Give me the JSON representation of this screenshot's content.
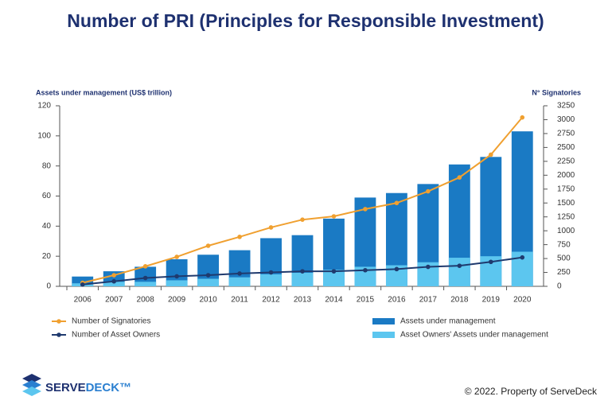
{
  "title": "Number of PRI (Principles for Responsible Investment)",
  "footer": {
    "logo": [
      "SERVE",
      "DECK™"
    ],
    "copyright": "© 2022. Property of ServeDeck"
  },
  "chart_data": {
    "type": "combo",
    "y_label": "Assets under management (US$ trillion)",
    "y2_label": "N° Signatories",
    "categories": [
      "2006",
      "2007",
      "2008",
      "2009",
      "2010",
      "2011",
      "2012",
      "2013",
      "2014",
      "2015",
      "2016",
      "2017",
      "2018",
      "2019",
      "2020"
    ],
    "ylim": [
      0,
      120
    ],
    "yticks": [
      0,
      20,
      40,
      60,
      80,
      100,
      120
    ],
    "y2lim": [
      0,
      3250
    ],
    "y2ticks": [
      0,
      250,
      500,
      750,
      1000,
      1250,
      1500,
      1750,
      2000,
      2250,
      2500,
      2750,
      3000,
      3250
    ],
    "series": [
      {
        "name": "Number of Signatories",
        "type": "line",
        "axis": "y2",
        "color": "#f0a030",
        "values": [
          63,
          200,
          360,
          530,
          730,
          890,
          1060,
          1200,
          1260,
          1390,
          1500,
          1710,
          1960,
          2370,
          3040
        ]
      },
      {
        "name": "Number of Asset Owners",
        "type": "line",
        "axis": "y2",
        "color": "#1f3a6e",
        "values": [
          32,
          90,
          150,
          180,
          200,
          230,
          250,
          270,
          270,
          290,
          310,
          350,
          370,
          440,
          520
        ]
      },
      {
        "name": "Assets under management",
        "type": "bar",
        "color": "#1a7ac4",
        "values": [
          6.5,
          10,
          13,
          18,
          21,
          24,
          32,
          34,
          45,
          59,
          62,
          68,
          81,
          86,
          103
        ]
      },
      {
        "name": "Asset Owners' Assets under management",
        "type": "bar",
        "color": "#5cc6ef",
        "values": [
          2,
          3,
          3,
          4,
          5,
          6,
          8,
          9,
          11,
          13,
          14,
          16,
          19,
          20,
          23
        ]
      }
    ]
  }
}
